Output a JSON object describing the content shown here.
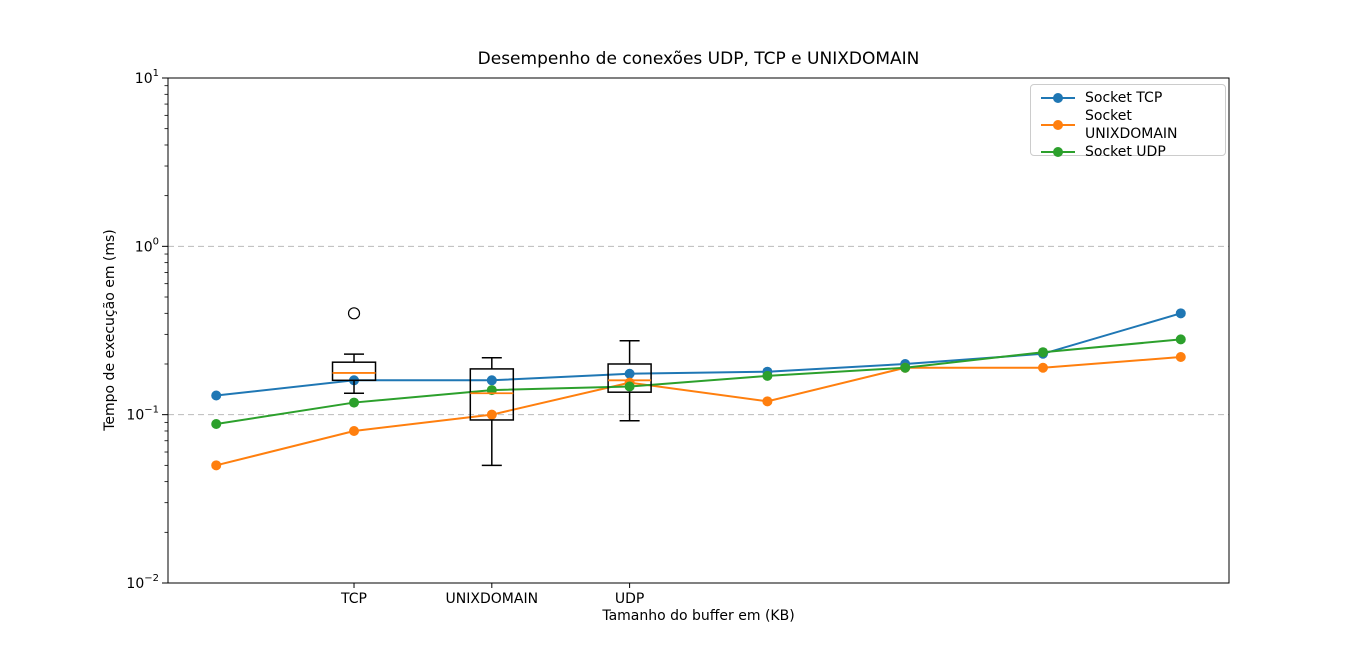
{
  "chart_data": {
    "type": "line",
    "title": "Desempenho de conexões UDP, TCP e UNIXDOMAIN",
    "xlabel": "Tamanho do buffer em (KB)",
    "ylabel": "Tempo de execução em (ms)",
    "y_scale": "log",
    "ylim": [
      0.01,
      10
    ],
    "xlim": [
      0.65,
      8.35
    ],
    "grid": {
      "axis": "y",
      "style": "dashed",
      "color": "#bbbbbb",
      "values": [
        1,
        0.1
      ]
    },
    "x_positions": [
      1,
      2,
      3,
      4,
      5,
      6,
      7,
      8
    ],
    "x_ticks": [
      {
        "pos": 2,
        "label": "TCP"
      },
      {
        "pos": 3,
        "label": "UNIXDOMAIN"
      },
      {
        "pos": 4,
        "label": "UDP"
      }
    ],
    "y_ticks": [
      {
        "value": 10,
        "base": "10",
        "exp": "1"
      },
      {
        "value": 1,
        "base": "10",
        "exp": "0"
      },
      {
        "value": 0.1,
        "base": "10",
        "exp": "−1"
      },
      {
        "value": 0.01,
        "base": "10",
        "exp": "−2"
      }
    ],
    "series": [
      {
        "name": "Socket TCP",
        "color": "#1f77b4",
        "values": [
          0.13,
          0.16,
          0.16,
          0.175,
          0.18,
          0.2,
          0.23,
          0.4
        ]
      },
      {
        "name": "Socket UNIXDOMAIN",
        "color": "#ff7f0e",
        "values": [
          0.05,
          0.08,
          0.1,
          0.155,
          0.12,
          0.19,
          0.19,
          0.22
        ]
      },
      {
        "name": "Socket UDP",
        "color": "#2ca02c",
        "values": [
          0.088,
          0.118,
          0.14,
          0.147,
          0.17,
          0.19,
          0.235,
          0.28
        ]
      }
    ],
    "boxplots": [
      {
        "pos": 2,
        "label": "TCP",
        "whisker_low": 0.134,
        "q1": 0.16,
        "median": 0.177,
        "q3": 0.205,
        "whisker_high": 0.229,
        "fliers": [
          0.4
        ]
      },
      {
        "pos": 3,
        "label": "UNIXDOMAIN",
        "whisker_low": 0.05,
        "q1": 0.093,
        "median": 0.134,
        "q3": 0.187,
        "whisker_high": 0.218,
        "fliers": []
      },
      {
        "pos": 4,
        "label": "UDP",
        "whisker_low": 0.092,
        "q1": 0.136,
        "median": 0.16,
        "q3": 0.2,
        "whisker_high": 0.275,
        "fliers": []
      }
    ],
    "legend": {
      "position": "upper right",
      "entries": [
        "Socket TCP",
        "Socket UNIXDOMAIN",
        "Socket UDP"
      ]
    },
    "style": {
      "median_color": "#ff7f0e",
      "box_color": "#000000",
      "spine_color": "#000000"
    }
  }
}
